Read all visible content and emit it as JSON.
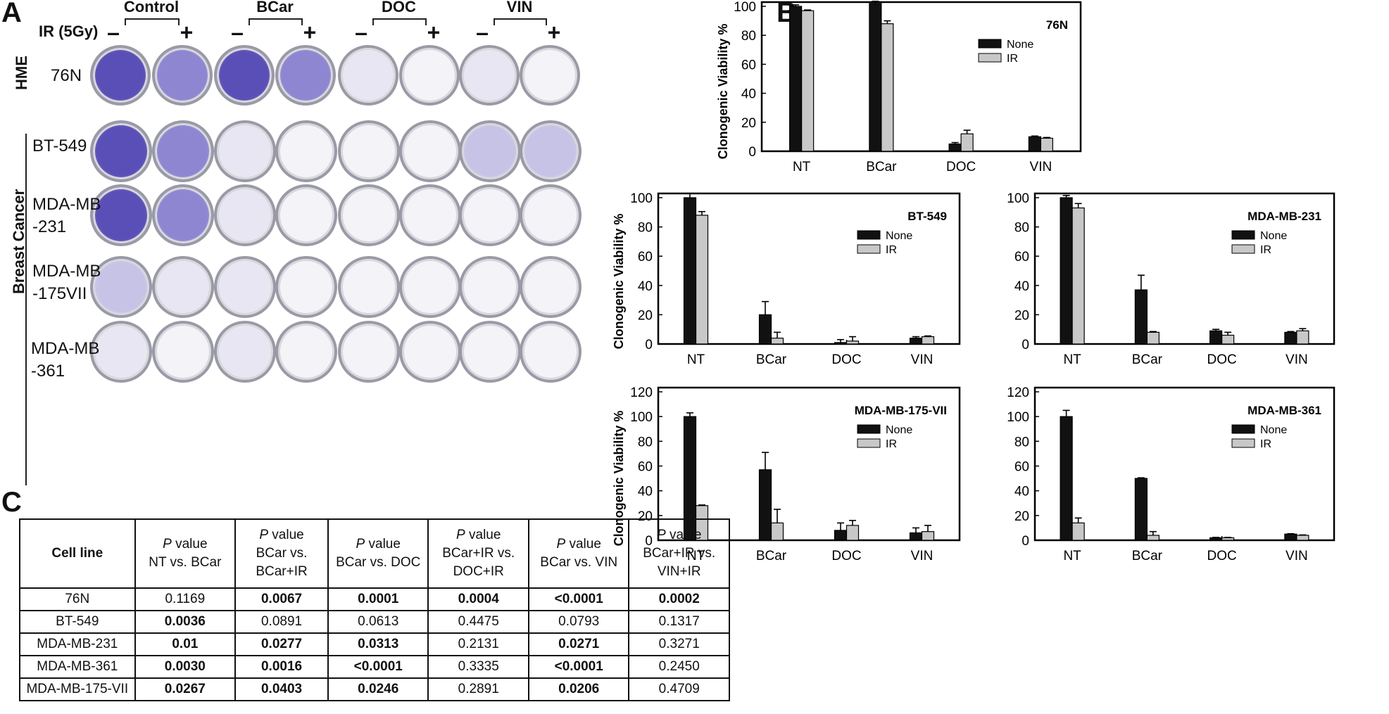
{
  "panelA": {
    "letter": "A",
    "ir_label": "IR (5Gy)",
    "groups": [
      "Control",
      "BCar",
      "DOC",
      "VIN"
    ],
    "minus": "–",
    "plus": "+",
    "hme_label": "HME",
    "breast_label": "Breast Cancer",
    "rows": [
      {
        "name_line1": "76N",
        "name_line2": ""
      },
      {
        "name_line1": "BT-549",
        "name_line2": ""
      },
      {
        "name_line1": "MDA-MB",
        "name_line2": "-231"
      },
      {
        "name_line1": "MDA-MB",
        "name_line2": "-175VII"
      },
      {
        "name_line1": "MDA-MB",
        "name_line2": "-361"
      }
    ],
    "dish_colors": [
      "#5a4fb6",
      "#8e86d0",
      "#c7c3e6",
      "#e7e6f2",
      "#f4f4f8"
    ]
  },
  "panelB": {
    "letter": "B"
  },
  "panelC": {
    "letter": "C",
    "headers": [
      {
        "l1": "Cell line",
        "l2": "",
        "l3": ""
      },
      {
        "l1": "P",
        "l1b": " value",
        "l2": "NT vs. BCar",
        "l3": ""
      },
      {
        "l1": "P",
        "l1b": " value",
        "l2": "BCar vs.",
        "l3": "BCar+IR"
      },
      {
        "l1": "P",
        "l1b": " value",
        "l2": "BCar vs. DOC",
        "l3": ""
      },
      {
        "l1": "P",
        "l1b": " value",
        "l2": "BCar+IR vs.",
        "l3": "DOC+IR"
      },
      {
        "l1": "P",
        "l1b": " value",
        "l2": "BCar vs. VIN",
        "l3": ""
      },
      {
        "l1": "P",
        "l1b": " value",
        "l2": "BCar+IR vs.",
        "l3": "VIN+IR"
      }
    ],
    "rows": [
      {
        "cells": [
          "76N",
          "0.1169",
          "0.0067",
          "0.0001",
          "0.0004",
          "<0.0001",
          "0.0002"
        ],
        "bold": [
          false,
          false,
          true,
          true,
          true,
          true,
          true
        ]
      },
      {
        "cells": [
          "BT-549",
          "0.0036",
          "0.0891",
          "0.0613",
          "0.4475",
          "0.0793",
          "0.1317"
        ],
        "bold": [
          false,
          true,
          false,
          false,
          false,
          false,
          false
        ]
      },
      {
        "cells": [
          "MDA-MB-231",
          "0.01",
          "0.0277",
          "0.0313",
          "0.2131",
          "0.0271",
          "0.3271"
        ],
        "bold": [
          false,
          true,
          true,
          true,
          false,
          true,
          false
        ]
      },
      {
        "cells": [
          "MDA-MB-361",
          "0.0030",
          "0.0016",
          "<0.0001",
          "0.3335",
          "<0.0001",
          "0.2450"
        ],
        "bold": [
          false,
          true,
          true,
          true,
          false,
          true,
          false
        ]
      },
      {
        "cells": [
          "MDA-MB-175-VII",
          "0.0267",
          "0.0403",
          "0.0246",
          "0.2891",
          "0.0206",
          "0.4709"
        ],
        "bold": [
          false,
          true,
          true,
          true,
          false,
          true,
          false
        ]
      }
    ]
  },
  "chart_data": [
    {
      "type": "bar",
      "title": "76N",
      "categories": [
        "NT",
        "BCar",
        "DOC",
        "VIN"
      ],
      "ylabel": "Clonogenic Viability %",
      "ylim": [
        0,
        100
      ],
      "yticks": [
        0,
        20,
        40,
        60,
        80,
        100
      ],
      "legend": "top-right",
      "series": [
        {
          "name": "None",
          "values": [
            100,
            102,
            5,
            10
          ],
          "errors": [
            1,
            1.5,
            1,
            0.5
          ],
          "color": "#111111"
        },
        {
          "name": "IR",
          "values": [
            97,
            88,
            12,
            9
          ],
          "errors": [
            0.5,
            2,
            2.5,
            0.5
          ],
          "color": "#c8c8c8"
        }
      ]
    },
    {
      "type": "bar",
      "title": "BT-549",
      "categories": [
        "NT",
        "BCar",
        "DOC",
        "VIN"
      ],
      "ylabel": "Clonogenic Viability %",
      "ylim": [
        0,
        100
      ],
      "yticks": [
        0,
        20,
        40,
        60,
        80,
        100
      ],
      "legend": "top-right",
      "series": [
        {
          "name": "None",
          "values": [
            100,
            20,
            1,
            4
          ],
          "errors": [
            3,
            9,
            2,
            1
          ],
          "color": "#111111"
        },
        {
          "name": "IR",
          "values": [
            88,
            4,
            2,
            5
          ],
          "errors": [
            2.5,
            4,
            3,
            0.5
          ],
          "color": "#c8c8c8"
        }
      ]
    },
    {
      "type": "bar",
      "title": "MDA-MB-231",
      "categories": [
        "NT",
        "BCar",
        "DOC",
        "VIN"
      ],
      "ylabel": "",
      "ylim": [
        0,
        100
      ],
      "yticks": [
        0,
        20,
        40,
        60,
        80,
        100
      ],
      "legend": "top-right",
      "series": [
        {
          "name": "None",
          "values": [
            100,
            37,
            9,
            8
          ],
          "errors": [
            1.5,
            10,
            1,
            0.5
          ],
          "color": "#111111"
        },
        {
          "name": "IR",
          "values": [
            93,
            8,
            6,
            9
          ],
          "errors": [
            3,
            0.5,
            2,
            1.5
          ],
          "color": "#c8c8c8"
        }
      ]
    },
    {
      "type": "bar",
      "title": "MDA-MB-175-VII",
      "categories": [
        "NT",
        "BCar",
        "DOC",
        "VIN"
      ],
      "ylabel": "Clonogenic Viability %",
      "ylim": [
        0,
        120
      ],
      "yticks": [
        0,
        20,
        40,
        60,
        80,
        100,
        120
      ],
      "legend": "top-right",
      "series": [
        {
          "name": "None",
          "values": [
            100,
            57,
            8,
            6
          ],
          "errors": [
            3,
            14,
            6,
            4
          ],
          "color": "#111111"
        },
        {
          "name": "IR",
          "values": [
            28,
            14,
            12,
            7
          ],
          "errors": [
            0.5,
            11,
            4,
            5
          ],
          "color": "#c8c8c8"
        }
      ]
    },
    {
      "type": "bar",
      "title": "MDA-MB-361",
      "categories": [
        "NT",
        "BCar",
        "DOC",
        "VIN"
      ],
      "ylabel": "",
      "ylim": [
        0,
        120
      ],
      "yticks": [
        0,
        20,
        40,
        60,
        80,
        100,
        120
      ],
      "legend": "top-right",
      "series": [
        {
          "name": "None",
          "values": [
            100,
            50,
            2,
            5
          ],
          "errors": [
            5,
            0.5,
            0.3,
            0.3
          ],
          "color": "#111111"
        },
        {
          "name": "IR",
          "values": [
            14,
            4,
            2,
            4
          ],
          "errors": [
            4,
            3,
            0.3,
            0.3
          ],
          "color": "#c8c8c8"
        }
      ]
    }
  ]
}
